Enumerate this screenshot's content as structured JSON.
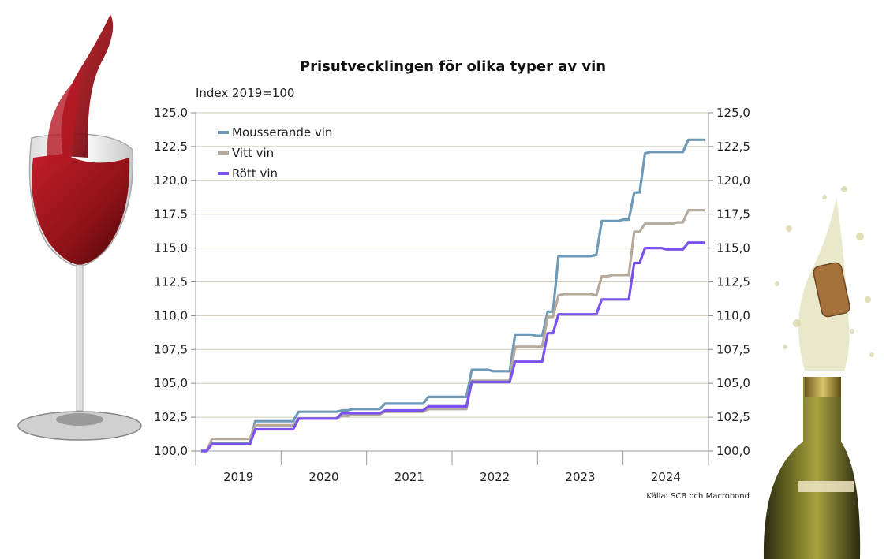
{
  "chart_data": {
    "type": "line",
    "title": "Prisutvecklingen för olika typer av vin",
    "ylabel": "Index 2019=100",
    "source": "Källa: SCB och Macrobond",
    "ylim": [
      100,
      125
    ],
    "yticks": [
      "100,0",
      "102,5",
      "105,0",
      "107,5",
      "110,0",
      "112,5",
      "115,0",
      "117,5",
      "120,0",
      "122,5",
      "125,0"
    ],
    "ytick_values": [
      100,
      102.5,
      105,
      107.5,
      110,
      112.5,
      115,
      117.5,
      120,
      122.5,
      125
    ],
    "xlabels": [
      "2019",
      "2020",
      "2021",
      "2022",
      "2023",
      "2024"
    ],
    "x_start": "2019-01",
    "legend_position": "top-left",
    "grid": true,
    "series": [
      {
        "name": "Mousserande vin",
        "color": "#6e9ab8",
        "values": [
          100.0,
          100.0,
          100.6,
          100.6,
          100.6,
          100.6,
          100.6,
          100.6,
          100.6,
          100.6,
          102.2,
          102.2,
          102.2,
          102.2,
          102.2,
          102.2,
          102.2,
          102.2,
          102.9,
          102.9,
          102.9,
          102.9,
          102.9,
          102.9,
          102.9,
          102.9,
          103.0,
          103.0,
          103.1,
          103.1,
          103.1,
          103.1,
          103.1,
          103.1,
          103.5,
          103.5,
          103.5,
          103.5,
          103.5,
          103.5,
          103.5,
          103.5,
          104.0,
          104.0,
          104.0,
          104.0,
          104.0,
          104.0,
          104.0,
          104.0,
          106.0,
          106.0,
          106.0,
          106.0,
          105.9,
          105.9,
          105.9,
          105.9,
          108.6,
          108.6,
          108.6,
          108.6,
          108.5,
          108.5,
          110.3,
          110.3,
          114.4,
          114.4,
          114.4,
          114.4,
          114.4,
          114.4,
          114.4,
          114.5,
          117.0,
          117.0,
          117.0,
          117.0,
          117.1,
          117.1,
          119.1,
          119.1,
          122.0,
          122.1,
          122.1,
          122.1,
          122.1,
          122.1,
          122.1,
          122.1,
          123.0,
          123.0,
          123.0,
          123.0
        ]
      },
      {
        "name": "Vitt vin",
        "color": "#b5aa9b",
        "values": [
          100.0,
          100.0,
          100.9,
          100.9,
          100.9,
          100.9,
          100.9,
          100.9,
          100.9,
          100.9,
          101.9,
          101.9,
          101.9,
          101.9,
          101.9,
          101.9,
          101.9,
          101.9,
          102.4,
          102.4,
          102.4,
          102.4,
          102.4,
          102.4,
          102.4,
          102.4,
          102.6,
          102.6,
          102.7,
          102.7,
          102.7,
          102.7,
          102.7,
          102.7,
          102.9,
          102.9,
          102.9,
          102.9,
          102.9,
          102.9,
          102.9,
          102.9,
          103.1,
          103.1,
          103.1,
          103.1,
          103.1,
          103.1,
          103.1,
          103.1,
          105.2,
          105.2,
          105.2,
          105.2,
          105.2,
          105.2,
          105.2,
          105.2,
          107.7,
          107.7,
          107.7,
          107.7,
          107.7,
          107.7,
          109.9,
          109.9,
          111.5,
          111.6,
          111.6,
          111.6,
          111.6,
          111.6,
          111.6,
          111.5,
          112.9,
          112.9,
          113.0,
          113.0,
          113.0,
          113.0,
          116.2,
          116.2,
          116.8,
          116.8,
          116.8,
          116.8,
          116.8,
          116.8,
          116.9,
          116.9,
          117.8,
          117.8,
          117.8,
          117.8
        ]
      },
      {
        "name": "Rött vin",
        "color": "#7a52f0",
        "values": [
          100.0,
          100.0,
          100.5,
          100.5,
          100.5,
          100.5,
          100.5,
          100.5,
          100.5,
          100.5,
          101.6,
          101.6,
          101.6,
          101.6,
          101.6,
          101.6,
          101.6,
          101.6,
          102.4,
          102.4,
          102.4,
          102.4,
          102.4,
          102.4,
          102.4,
          102.4,
          102.8,
          102.8,
          102.8,
          102.8,
          102.8,
          102.8,
          102.8,
          102.8,
          103.0,
          103.0,
          103.0,
          103.0,
          103.0,
          103.0,
          103.0,
          103.0,
          103.3,
          103.3,
          103.3,
          103.3,
          103.3,
          103.3,
          103.3,
          103.3,
          105.1,
          105.1,
          105.1,
          105.1,
          105.1,
          105.1,
          105.1,
          105.1,
          106.6,
          106.6,
          106.6,
          106.6,
          106.6,
          106.6,
          108.7,
          108.7,
          110.1,
          110.1,
          110.1,
          110.1,
          110.1,
          110.1,
          110.1,
          110.1,
          111.2,
          111.2,
          111.2,
          111.2,
          111.2,
          111.2,
          113.9,
          113.9,
          115.0,
          115.0,
          115.0,
          115.0,
          114.9,
          114.9,
          114.9,
          114.9,
          115.4,
          115.4,
          115.4,
          115.4
        ]
      }
    ]
  },
  "decor": {
    "left_icon": "red-wine-glass-icon",
    "right_icon": "champagne-bottle-icon",
    "wine_color": "#8e1218",
    "bottle_color": "#5a5a1e"
  }
}
